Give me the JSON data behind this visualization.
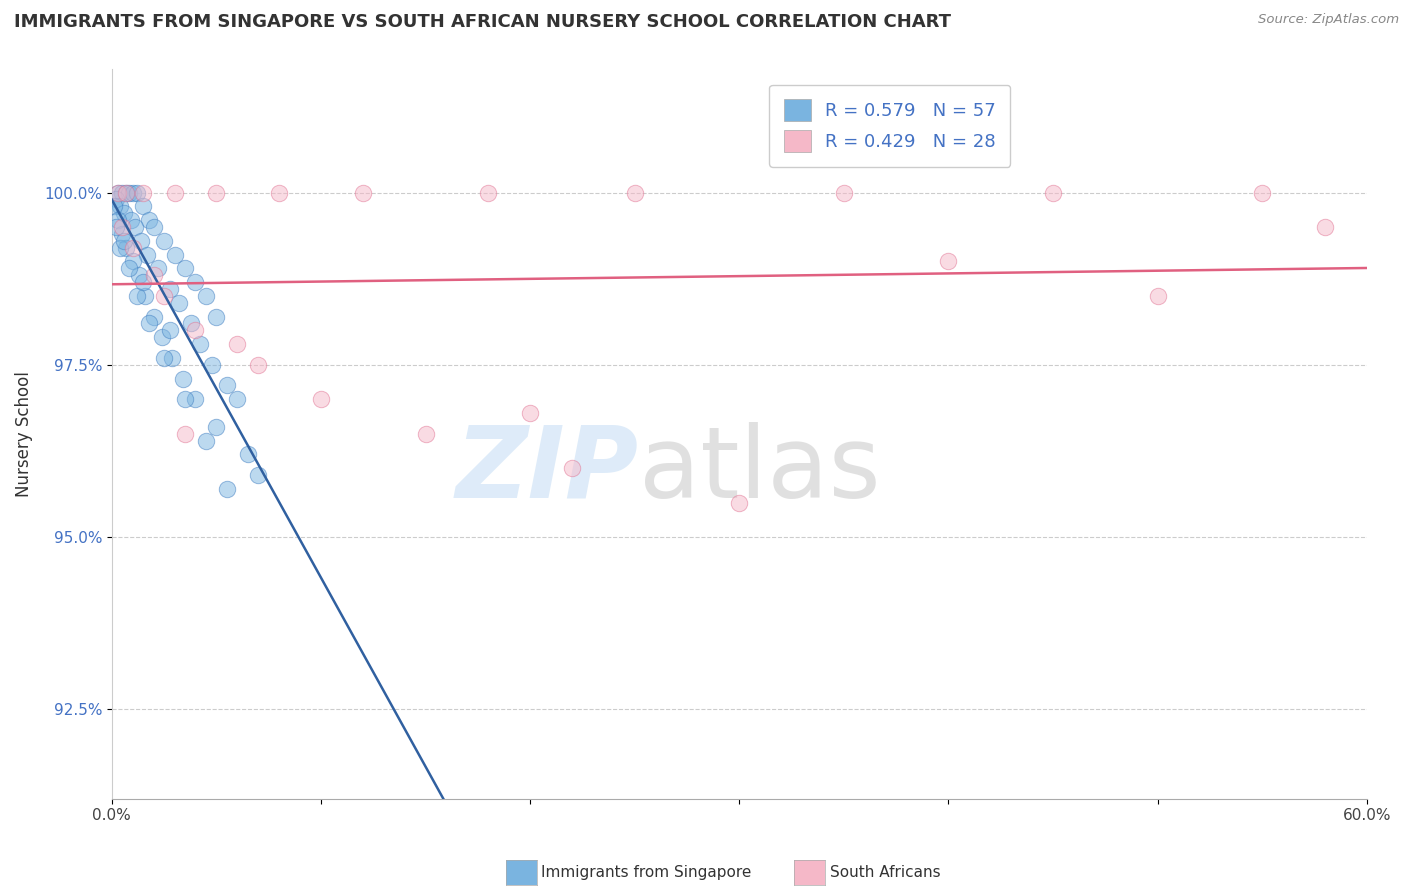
{
  "title": "IMMIGRANTS FROM SINGAPORE VS SOUTH AFRICAN NURSERY SCHOOL CORRELATION CHART",
  "source_text": "Source: ZipAtlas.com",
  "ylabel": "Nursery School",
  "xlim": [
    0.0,
    60.0
  ],
  "ylim": [
    91.2,
    101.8
  ],
  "yticks": [
    92.5,
    95.0,
    97.5,
    100.0
  ],
  "ytick_labels": [
    "92.5%",
    "95.0%",
    "97.5%",
    "100.0%"
  ],
  "xticks": [
    0.0,
    10.0,
    20.0,
    30.0,
    40.0,
    50.0,
    60.0
  ],
  "xtick_labels": [
    "0.0%",
    "",
    "",
    "",
    "",
    "",
    "60.0%"
  ],
  "R_blue": 0.579,
  "N_blue": 57,
  "R_pink": 0.429,
  "N_pink": 28,
  "blue_scatter_color": "#7ab4e0",
  "blue_edge_color": "#3a7abf",
  "pink_scatter_color": "#f5b8c8",
  "pink_edge_color": "#e07090",
  "blue_line_color": "#3060a0",
  "pink_line_color": "#e06080",
  "blue_x": [
    0.3,
    0.5,
    0.7,
    0.8,
    1.0,
    1.2,
    1.5,
    1.8,
    2.0,
    2.5,
    3.0,
    3.5,
    4.0,
    4.5,
    5.0,
    0.2,
    0.4,
    0.6,
    0.9,
    1.1,
    1.4,
    1.7,
    2.2,
    2.8,
    3.2,
    3.8,
    4.2,
    4.8,
    5.5,
    6.0,
    0.1,
    0.3,
    0.5,
    0.7,
    1.0,
    1.3,
    1.6,
    2.0,
    2.4,
    2.9,
    3.4,
    4.0,
    5.0,
    6.5,
    7.0,
    0.2,
    0.4,
    0.8,
    1.2,
    1.8,
    2.5,
    3.5,
    4.5,
    5.5,
    0.6,
    1.5,
    2.8
  ],
  "blue_y": [
    100.0,
    100.0,
    100.0,
    100.0,
    100.0,
    100.0,
    99.8,
    99.6,
    99.5,
    99.3,
    99.1,
    98.9,
    98.7,
    98.5,
    98.2,
    99.9,
    99.8,
    99.7,
    99.6,
    99.5,
    99.3,
    99.1,
    98.9,
    98.6,
    98.4,
    98.1,
    97.8,
    97.5,
    97.2,
    97.0,
    99.8,
    99.6,
    99.4,
    99.2,
    99.0,
    98.8,
    98.5,
    98.2,
    97.9,
    97.6,
    97.3,
    97.0,
    96.6,
    96.2,
    95.9,
    99.5,
    99.2,
    98.9,
    98.5,
    98.1,
    97.6,
    97.0,
    96.4,
    95.7,
    99.3,
    98.7,
    98.0
  ],
  "pink_x": [
    0.3,
    0.7,
    1.5,
    3.0,
    5.0,
    8.0,
    12.0,
    18.0,
    25.0,
    35.0,
    45.0,
    55.0,
    0.5,
    1.0,
    2.0,
    4.0,
    7.0,
    10.0,
    15.0,
    22.0,
    30.0,
    40.0,
    50.0,
    58.0,
    2.5,
    6.0,
    20.0,
    3.5
  ],
  "pink_y": [
    100.0,
    100.0,
    100.0,
    100.0,
    100.0,
    100.0,
    100.0,
    100.0,
    100.0,
    100.0,
    100.0,
    100.0,
    99.5,
    99.2,
    98.8,
    98.0,
    97.5,
    97.0,
    96.5,
    96.0,
    95.5,
    99.0,
    98.5,
    99.5,
    98.5,
    97.8,
    96.8,
    96.5
  ]
}
